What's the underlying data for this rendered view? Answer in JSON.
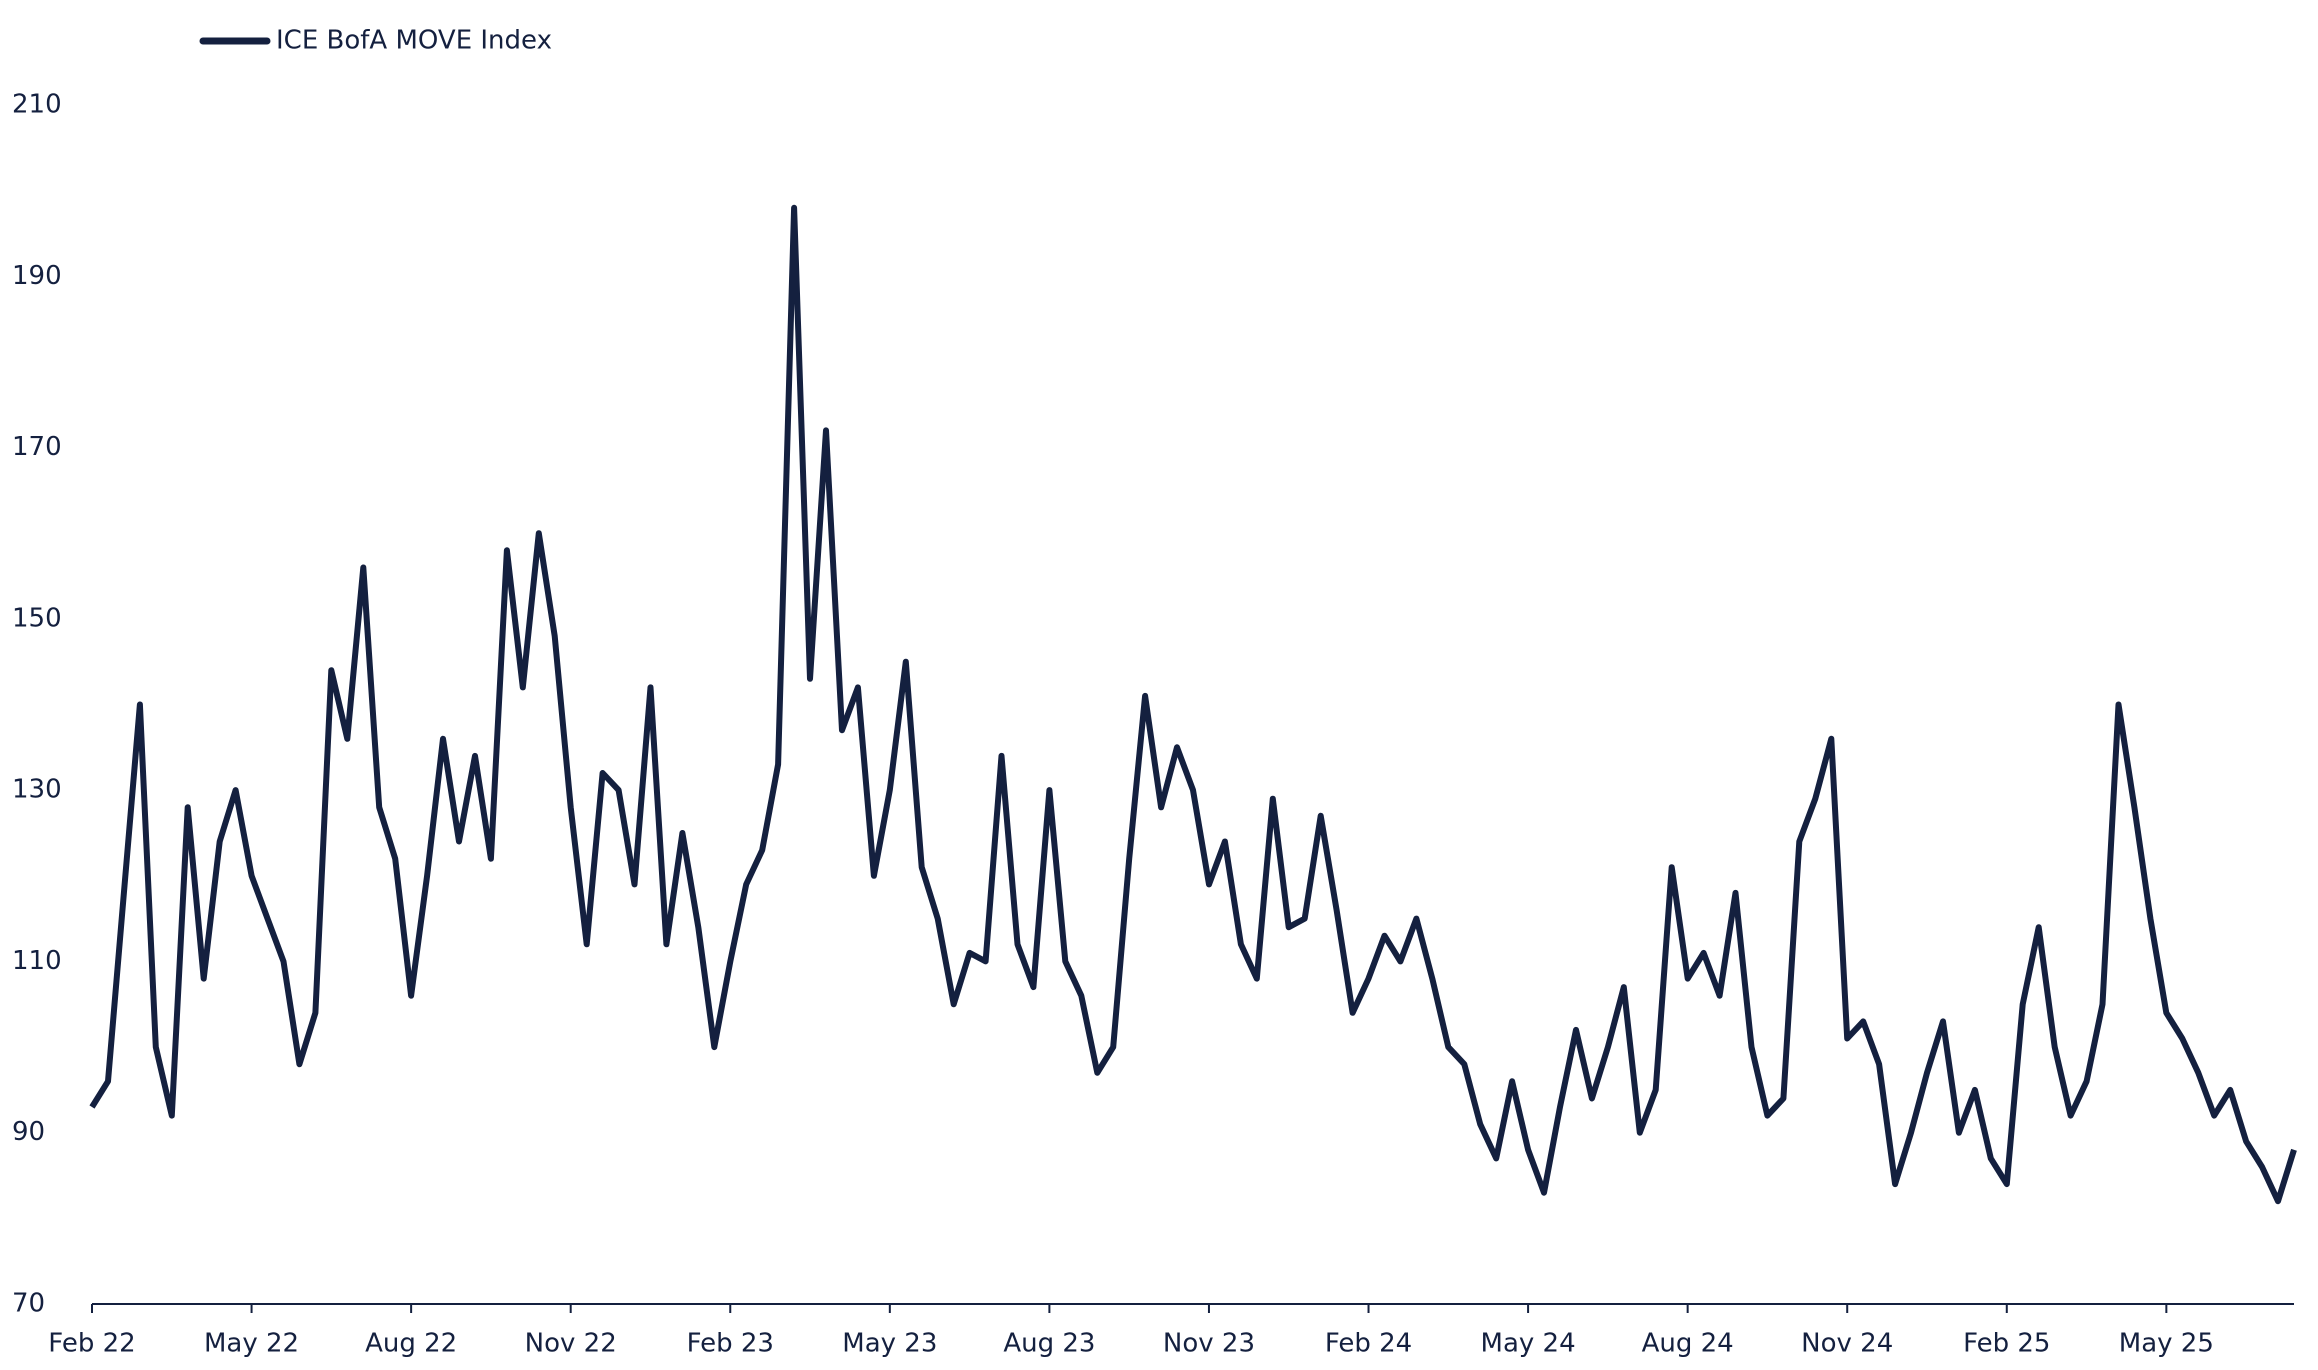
{
  "chart_data": {
    "type": "line",
    "categories": [
      "Feb 22",
      null,
      null,
      null,
      null,
      null,
      null,
      null,
      null,
      null,
      "May 22",
      null,
      null,
      null,
      null,
      null,
      null,
      null,
      null,
      null,
      "Aug 22",
      null,
      null,
      null,
      null,
      null,
      null,
      null,
      null,
      null,
      "Nov 22",
      null,
      null,
      null,
      null,
      null,
      null,
      null,
      null,
      null,
      "Feb 23",
      null,
      null,
      null,
      null,
      null,
      null,
      null,
      null,
      null,
      "May 23",
      null,
      null,
      null,
      null,
      null,
      null,
      null,
      null,
      null,
      "Aug 23",
      null,
      null,
      null,
      null,
      null,
      null,
      null,
      null,
      null,
      "Nov 23",
      null,
      null,
      null,
      null,
      null,
      null,
      null,
      null,
      null,
      "Feb 24",
      null,
      null,
      null,
      null,
      null,
      null,
      null,
      null,
      null,
      "May 24",
      null,
      null,
      null,
      null,
      null,
      null,
      null,
      null,
      null,
      "Aug 24",
      null,
      null,
      null,
      null,
      null,
      null,
      null,
      null,
      null,
      "Nov 24",
      null,
      null,
      null,
      null,
      null,
      null,
      null,
      null,
      null,
      "Feb 25",
      null,
      null,
      null,
      null,
      null,
      null,
      null,
      null,
      null,
      "May 25",
      null,
      null,
      null,
      null,
      null,
      null,
      null,
      null
    ],
    "series": [
      {
        "name": "ICE BofA MOVE Index",
        "color": "#14203f",
        "values": [
          93,
          96,
          118,
          140,
          100,
          92,
          128,
          108,
          124,
          130,
          120,
          115,
          110,
          98,
          104,
          144,
          136,
          156,
          128,
          122,
          106,
          120,
          136,
          124,
          134,
          122,
          158,
          142,
          160,
          148,
          128,
          112,
          132,
          130,
          119,
          142,
          112,
          125,
          114,
          100,
          110,
          119,
          123,
          133,
          198,
          143,
          172,
          137,
          142,
          120,
          130,
          145,
          121,
          115,
          105,
          111,
          110,
          134,
          112,
          107,
          130,
          110,
          106,
          97,
          100,
          122,
          141,
          128,
          135,
          130,
          119,
          124,
          112,
          108,
          129,
          114,
          115,
          127,
          116,
          104,
          108,
          113,
          110,
          115,
          108,
          100,
          98,
          91,
          87,
          96,
          88,
          83,
          93,
          102,
          94,
          100,
          107,
          90,
          95,
          121,
          108,
          111,
          106,
          118,
          100,
          92,
          94,
          124,
          129,
          136,
          101,
          103,
          98,
          84,
          90,
          97,
          103,
          90,
          95,
          87,
          84,
          105,
          114,
          100,
          92,
          96,
          105,
          140,
          128,
          115,
          104,
          101,
          97,
          92,
          95,
          89,
          86,
          82,
          88
        ]
      }
    ],
    "ylim": [
      70,
      210
    ],
    "yticks": [
      70,
      90,
      110,
      130,
      150,
      170,
      190,
      210
    ],
    "grid": false,
    "legend": "top-left"
  }
}
